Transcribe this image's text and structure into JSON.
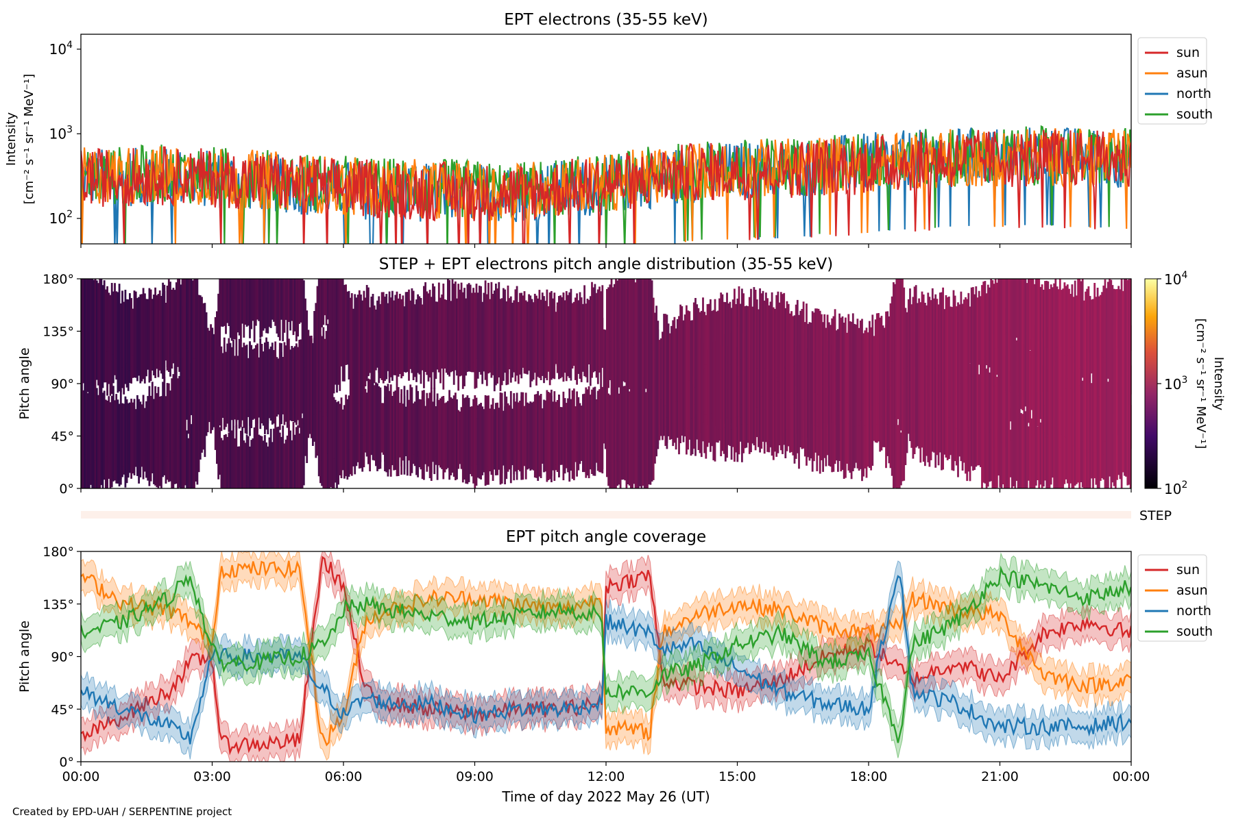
{
  "colors": {
    "sun": "#d62728",
    "asun": "#ff7f0e",
    "north": "#1f77b4",
    "south": "#2ca02c",
    "step_bar": "#fdf0ea"
  },
  "footer": {
    "credit": "Created by EPD-UAH / SERPENTINE project"
  },
  "legend": {
    "sun": "sun",
    "asun": "asun",
    "north": "north",
    "south": "south"
  },
  "step_label": "STEP",
  "chart_data": [
    {
      "type": "line",
      "title": "EPT electrons (35-55 keV)",
      "ylabel_line1": "Intensity",
      "ylabel_line2": "[cm⁻² s⁻¹ sr⁻¹ MeV⁻¹]",
      "yscale": "log",
      "ylim": [
        50,
        15000
      ],
      "yticks": [
        "10²",
        "10³",
        "10⁴"
      ],
      "legend_position": "outside-right",
      "series": [
        {
          "name": "sun",
          "x_hours": [
            0,
            2,
            4,
            6,
            8,
            10,
            12,
            14,
            16,
            18,
            20,
            22,
            24
          ],
          "values": [
            300,
            320,
            280,
            230,
            210,
            200,
            250,
            350,
            380,
            430,
            500,
            520,
            480
          ]
        },
        {
          "name": "asun",
          "x_hours": [
            0,
            2,
            4,
            6,
            8,
            10,
            12,
            14,
            16,
            18,
            20,
            22,
            24
          ],
          "values": [
            320,
            330,
            290,
            240,
            220,
            210,
            260,
            360,
            400,
            450,
            520,
            540,
            500
          ]
        },
        {
          "name": "north",
          "x_hours": [
            0,
            2,
            4,
            6,
            8,
            10,
            12,
            14,
            16,
            18,
            20,
            22,
            24
          ],
          "values": [
            300,
            310,
            270,
            220,
            200,
            200,
            240,
            340,
            390,
            460,
            540,
            560,
            500
          ]
        },
        {
          "name": "south",
          "x_hours": [
            0,
            2,
            4,
            6,
            8,
            10,
            12,
            14,
            16,
            18,
            20,
            22,
            24
          ],
          "values": [
            310,
            340,
            300,
            250,
            230,
            210,
            260,
            370,
            410,
            470,
            530,
            550,
            520
          ]
        }
      ]
    },
    {
      "type": "heatmap",
      "title": "STEP + EPT electrons pitch angle distribution (35-55 keV)",
      "ylabel": "Pitch angle",
      "yticks": [
        "0°",
        "45°",
        "90°",
        "135°",
        "180°"
      ],
      "ylim": [
        0,
        180
      ],
      "colorbar": {
        "label_line1": "Intensity",
        "label_line2": "[cm⁻² s⁻¹ sr⁻¹ MeV⁻¹]",
        "scale": "log",
        "range": [
          100,
          10000
        ],
        "ticks": [
          "10²",
          "10³",
          "10⁴"
        ]
      }
    },
    {
      "type": "line",
      "title": "EPT pitch angle coverage",
      "ylabel": "Pitch angle",
      "xlabel": "Time of day 2022 May 26 (UT)",
      "ylim": [
        0,
        180
      ],
      "yticks": [
        "0°",
        "45°",
        "90°",
        "135°",
        "180°"
      ],
      "xticks": [
        "00:00",
        "03:00",
        "06:00",
        "09:00",
        "12:00",
        "15:00",
        "18:00",
        "21:00",
        "00:00"
      ],
      "legend_position": "outside-right",
      "x_hours": [
        0,
        1,
        2,
        2.5,
        3,
        3.2,
        4,
        5,
        5.5,
        5.6,
        6,
        6.5,
        7,
        8,
        9,
        10,
        11,
        11.9,
        12,
        13,
        13.3,
        14,
        15,
        16,
        17,
        18,
        18.7,
        19,
        20,
        21,
        22,
        23,
        24
      ],
      "series": [
        {
          "name": "sun",
          "values": [
            20,
            40,
            60,
            85,
            90,
            15,
            15,
            18,
            170,
            170,
            150,
            60,
            50,
            45,
            40,
            45,
            45,
            50,
            150,
            160,
            70,
            65,
            60,
            70,
            90,
            100,
            80,
            70,
            85,
            70,
            110,
            120,
            110
          ]
        },
        {
          "name": "asun",
          "values": [
            160,
            135,
            130,
            120,
            100,
            165,
            165,
            165,
            20,
            20,
            40,
            120,
            130,
            140,
            140,
            135,
            130,
            140,
            30,
            25,
            110,
            125,
            135,
            130,
            115,
            110,
            115,
            140,
            130,
            125,
            75,
            65,
            70
          ]
        },
        {
          "name": "north",
          "values": [
            60,
            45,
            30,
            20,
            90,
            90,
            90,
            90,
            60,
            60,
            40,
            55,
            50,
            50,
            40,
            45,
            45,
            50,
            120,
            110,
            95,
            100,
            80,
            60,
            50,
            45,
            170,
            60,
            50,
            30,
            30,
            30,
            35
          ]
        },
        {
          "name": "south",
          "values": [
            110,
            120,
            140,
            160,
            95,
            85,
            85,
            90,
            100,
            100,
            130,
            135,
            130,
            125,
            120,
            125,
            130,
            125,
            60,
            60,
            75,
            80,
            100,
            110,
            85,
            90,
            20,
            100,
            120,
            160,
            150,
            140,
            150
          ]
        }
      ]
    }
  ]
}
